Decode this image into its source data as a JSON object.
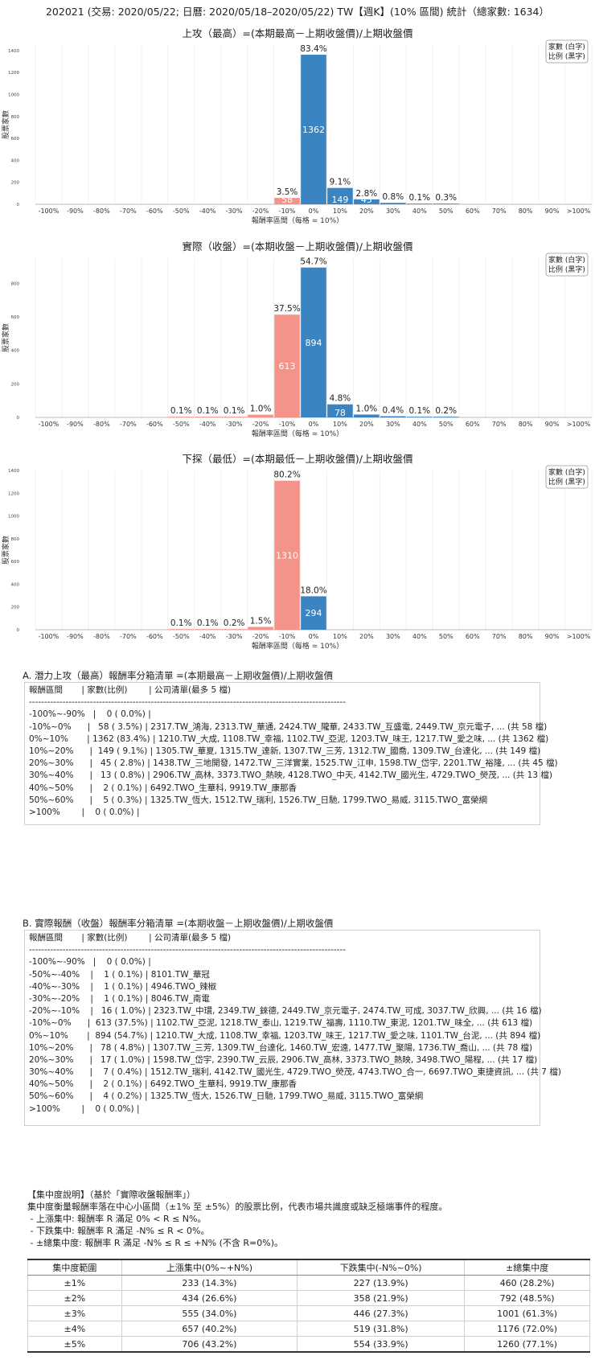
{
  "main_title": "202021 (交易: 2020/05/22; 日曆: 2020/05/18–2020/05/22) TW【週K】(10% 區間) 統計（總家數: 1634）",
  "legend": [
    "家數 (白字)",
    "比例 (黑字)"
  ],
  "chart_data": [
    {
      "type": "bar",
      "title": "上攻（最高）=(本期最高－上期收盤價)/上期收盤價",
      "xlabel": "報酬率區間（每格 = 10%）",
      "ylabel": "股票家數",
      "ylim": [
        0,
        1450
      ],
      "yticks": [
        "0",
        "200",
        "400",
        "600",
        "800",
        "1000",
        "1200",
        "1400"
      ],
      "categories": [
        "-100%",
        "-90%",
        "-80%",
        "-70%",
        "-60%",
        "-50%",
        "-40%",
        "-30%",
        "-20%",
        "-10%",
        "0%",
        "10%",
        "20%",
        "30%",
        "40%",
        "50%",
        "60%",
        "70%",
        "80%",
        "90%",
        ">100%"
      ],
      "values": [
        0,
        0,
        0,
        0,
        0,
        0,
        0,
        0,
        0,
        58,
        1362,
        149,
        45,
        13,
        2,
        5,
        0,
        0,
        0,
        0,
        0
      ],
      "count_labels": [
        "",
        "",
        "",
        "",
        "",
        "",
        "",
        "",
        "",
        "58",
        "1362",
        "149",
        "45",
        "",
        "",
        "",
        "",
        "",
        "",
        "",
        ""
      ],
      "pct_labels": [
        "",
        "",
        "",
        "",
        "",
        "",
        "",
        "",
        "",
        "3.5%",
        "83.4%",
        "9.1%",
        "2.8%",
        "0.8%",
        "0.1%",
        "0.3%",
        "",
        "",
        "",
        "",
        ""
      ]
    },
    {
      "type": "bar",
      "title": "實際（收盤）=(本期收盤－上期收盤價)/上期收盤價",
      "xlabel": "報酬率區間（每格 = 10%）",
      "ylabel": "股票家數",
      "ylim": [
        0,
        950
      ],
      "yticks": [
        "0",
        "200",
        "400",
        "600",
        "800"
      ],
      "categories": [
        "-100%",
        "-90%",
        "-80%",
        "-70%",
        "-60%",
        "-50%",
        "-40%",
        "-30%",
        "-20%",
        "-10%",
        "0%",
        "10%",
        "20%",
        "30%",
        "40%",
        "50%",
        "60%",
        "70%",
        "80%",
        "90%",
        ">100%"
      ],
      "values": [
        0,
        0,
        0,
        0,
        0,
        1,
        1,
        1,
        16,
        613,
        894,
        78,
        17,
        7,
        2,
        4,
        0,
        0,
        0,
        0,
        0
      ],
      "count_labels": [
        "",
        "",
        "",
        "",
        "",
        "",
        "",
        "",
        "",
        "613",
        "894",
        "78",
        "",
        "",
        "",
        "",
        "",
        "",
        "",
        "",
        ""
      ],
      "pct_labels": [
        "",
        "",
        "",
        "",
        "",
        "0.1%",
        "0.1%",
        "0.1%",
        "1.0%",
        "37.5%",
        "54.7%",
        "4.8%",
        "1.0%",
        "0.4%",
        "0.1%",
        "0.2%",
        "",
        "",
        "",
        "",
        ""
      ]
    },
    {
      "type": "bar",
      "title": "下探（最低）=(本期最低－上期收盤價)/上期收盤價",
      "xlabel": "報酬率區間（每格 = 10%）",
      "ylabel": "股票家數",
      "ylim": [
        0,
        1400
      ],
      "yticks": [
        "0",
        "200",
        "400",
        "600",
        "800",
        "1000",
        "1200",
        "1400"
      ],
      "categories": [
        "-100%",
        "-90%",
        "-80%",
        "-70%",
        "-60%",
        "-50%",
        "-40%",
        "-30%",
        "-20%",
        "-10%",
        "0%",
        "10%",
        "20%",
        "30%",
        "40%",
        "50%",
        "60%",
        "70%",
        "80%",
        "90%",
        ">100%"
      ],
      "values": [
        0,
        0,
        0,
        0,
        0,
        1,
        1,
        3,
        25,
        1310,
        294,
        0,
        0,
        0,
        0,
        0,
        0,
        0,
        0,
        0,
        0
      ],
      "count_labels": [
        "",
        "",
        "",
        "",
        "",
        "",
        "",
        "",
        "",
        "1310",
        "294",
        "",
        "",
        "",
        "",
        "",
        "",
        "",
        "",
        "",
        ""
      ],
      "pct_labels": [
        "",
        "",
        "",
        "",
        "",
        "0.1%",
        "0.1%",
        "0.2%",
        "1.5%",
        "80.2%",
        "18.0%",
        "",
        "",
        "",
        "",
        "",
        "",
        "",
        "",
        "",
        ""
      ]
    }
  ],
  "colors": {
    "positive": "#3a84c1",
    "negative": "#f4938a"
  },
  "list_a": {
    "title": "A. 潛力上攻（最高）報酬率分箱清單 =(本期最高－上期收盤價)/上期收盤價",
    "lines": [
      "報酬區間       | 家數(比例)        | 公司清單(最多 5 檔)",
      "--------------------------------------------------------------------------------------------------------",
      "-100%~-90%   |    0 ( 0.0%) |",
      "-10%~0%      |   58 ( 3.5%) | 2317.TW_鴻海, 2313.TW_華通, 2424.TW_隴華, 2433.TW_互盛電, 2449.TW_京元電子, ... (共 58 檔)",
      "0%~10%       | 1362 (83.4%) | 1210.TW_大成, 1108.TW_幸福, 1102.TW_亞泥, 1203.TW_味王, 1217.TW_愛之味, ... (共 1362 檔)",
      "10%~20%      |  149 ( 9.1%) | 1305.TW_華夏, 1315.TW_達新, 1307.TW_三芳, 1312.TW_國喬, 1309.TW_台達化, ... (共 149 檔)",
      "20%~30%      |   45 ( 2.8%) | 1438.TW_三地開發, 1472.TW_三洋實業, 1525.TW_江申, 1598.TW_岱宇, 2201.TW_裕隆, ... (共 45 檔)",
      "30%~40%      |   13 ( 0.8%) | 2906.TW_高林, 3373.TWO_熱映, 4128.TWO_中天, 4142.TW_國光生, 4729.TWO_熒茂, ... (共 13 檔)",
      "40%~50%      |    2 ( 0.1%) | 6492.TWO_生華科, 9919.TW_康那香",
      "50%~60%      |    5 ( 0.3%) | 1325.TW_恆大, 1512.TW_瑞利, 1526.TW_日馳, 1799.TWO_易威, 3115.TWO_富榮綱",
      ">100%        |    0 ( 0.0%) |"
    ]
  },
  "list_b": {
    "title": "B. 實際報酬（收盤）報酬率分箱清單 =(本期收盤－上期收盤價)/上期收盤價",
    "lines": [
      "報酬區間       | 家數(比例)        | 公司清單(最多 5 檔)",
      "--------------------------------------------------------------------------------------------------------",
      "-100%~-90%   |    0 ( 0.0%) |",
      "-50%~-40%    |    1 ( 0.1%) | 8101.TW_華冠",
      "-40%~-30%    |    1 ( 0.1%) | 4946.TWO_辣椒",
      "-30%~-20%    |    1 ( 0.1%) | 8046.TW_南電",
      "-20%~-10%    |   16 ( 1.0%) | 2323.TW_中環, 2349.TW_錸德, 2449.TW_京元電子, 2474.TW_可成, 3037.TW_欣興, ... (共 16 檔)",
      "-10%~0%      |  613 (37.5%) | 1102.TW_亞泥, 1218.TW_泰山, 1219.TW_福壽, 1110.TW_東泥, 1201.TW_味全, ... (共 613 檔)",
      "0%~10%       |  894 (54.7%) | 1210.TW_大成, 1108.TW_幸福, 1203.TW_味王, 1217.TW_愛之味, 1101.TW_台泥, ... (共 894 檔)",
      "10%~20%      |   78 ( 4.8%) | 1307.TW_三芳, 1309.TW_台達化, 1460.TW_宏遠, 1477.TW_聚陽, 1736.TW_喬山, ... (共 78 檔)",
      "20%~30%      |   17 ( 1.0%) | 1598.TW_岱宇, 2390.TW_云辰, 2906.TW_高林, 3373.TWO_熱映, 3498.TWO_陽程, ... (共 17 檔)",
      "30%~40%      |    7 ( 0.4%) | 1512.TW_瑞利, 4142.TW_國光生, 4729.TWO_熒茂, 4743.TWO_合一, 6697.TWO_東捷資訊, ... (共 7 檔)",
      "40%~50%      |    2 ( 0.1%) | 6492.TWO_生華科, 9919.TW_康那香",
      "50%~60%      |    4 ( 0.2%) | 1325.TW_恆大, 1526.TW_日馳, 1799.TWO_易威, 3115.TWO_富榮綱",
      ">100%        |    0 ( 0.0%) |"
    ]
  },
  "concentration": {
    "lines": [
      "【集中度說明】（基於「實際收盤報酬率」）",
      "集中度衡量報酬率落在中心小區間（±1% 至 ±5%）的股票比例，代表市場共識度或缺乏極端事件的程度。",
      " - 上漲集中: 報酬率 R 滿足 0% < R ≤ N%。",
      " - 下跌集中: 報酬率 R 滿足 -N% ≤ R < 0%。",
      " - ±總集中度: 報酬率 R 滿足 -N% ≤ R ≤ +N% (不含 R=0%)。"
    ],
    "headers": [
      "集中度範圍",
      "上漲集中(0%~+N%)",
      "下跌集中(-N%~0%)",
      "±總集中度"
    ],
    "rows": [
      [
        "±1%",
        "233 (14.3%)",
        "227 (13.9%)",
        "460 (28.2%)"
      ],
      [
        "±2%",
        "434 (26.6%)",
        "358 (21.9%)",
        "792 (48.5%)"
      ],
      [
        "±3%",
        "555 (34.0%)",
        "446 (27.3%)",
        "1001 (61.3%)"
      ],
      [
        "±4%",
        "657 (40.2%)",
        "519 (31.8%)",
        "1176 (72.0%)"
      ],
      [
        "±5%",
        "706 (43.2%)",
        "554 (33.9%)",
        "1260 (77.1%)"
      ]
    ]
  }
}
